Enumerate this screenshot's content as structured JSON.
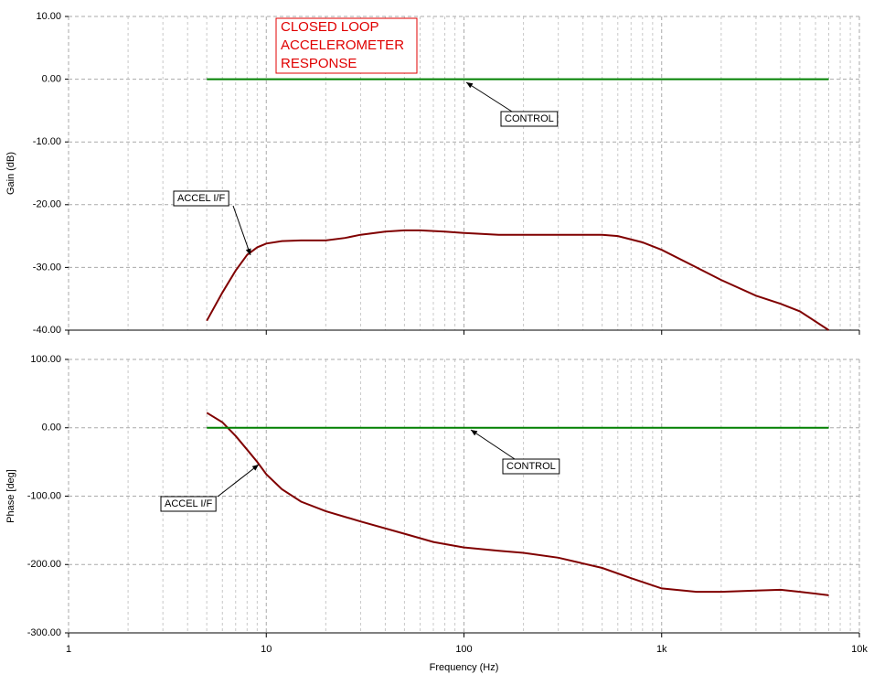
{
  "chart_data": [
    {
      "type": "line",
      "title": [
        "CLOSED LOOP",
        "ACCELEROMETER",
        "RESPONSE"
      ],
      "ylabel": "Gain (dB)",
      "x": [
        5,
        6,
        7,
        8,
        9,
        10,
        12,
        15,
        20,
        25,
        30,
        40,
        50,
        60,
        80,
        100,
        150,
        200,
        300,
        500,
        600,
        800,
        1000,
        1500,
        2000,
        3000,
        4000,
        5000,
        7000
      ],
      "series": [
        {
          "name": "ACCEL I/F",
          "color": "#800000",
          "values": [
            -38.5,
            -34,
            -30.5,
            -28,
            -26.8,
            -26.2,
            -25.8,
            -25.7,
            -25.7,
            -25.3,
            -24.8,
            -24.3,
            -24.1,
            -24.1,
            -24.3,
            -24.5,
            -24.8,
            -24.8,
            -24.8,
            -24.8,
            -25,
            -26,
            -27.2,
            -30,
            -32,
            -34.5,
            -35.8,
            -37,
            -40
          ]
        },
        {
          "name": "CONTROL",
          "color": "#008000",
          "values": [
            0,
            0,
            0,
            0,
            0,
            0,
            0,
            0,
            0,
            0,
            0,
            0,
            0,
            0,
            0,
            0,
            0,
            0,
            0,
            0,
            0,
            0,
            0,
            0,
            0,
            0,
            0,
            0,
            0
          ]
        }
      ],
      "xscale": "log",
      "xlim": [
        1,
        10000
      ],
      "xticks": [
        1,
        10,
        100,
        {
          "value": 1000,
          "label": "1k"
        },
        {
          "value": 10000,
          "label": "10k"
        }
      ],
      "ylim": [
        -40,
        10
      ],
      "yticks": [
        {
          "value": -40,
          "label": "-40.00"
        },
        {
          "value": -30,
          "label": "-30.00"
        },
        {
          "value": -20,
          "label": "-20.00"
        },
        {
          "value": -10,
          "label": "-10.00"
        },
        {
          "value": 0,
          "label": "0.00"
        },
        {
          "value": 10,
          "label": "10.00"
        }
      ],
      "grid": true
    },
    {
      "type": "line",
      "ylabel": "Phase [deg]",
      "xlabel": "Frequency (Hz)",
      "x": [
        5,
        6,
        7,
        8,
        9,
        10,
        12,
        15,
        20,
        30,
        50,
        70,
        100,
        150,
        200,
        300,
        500,
        700,
        1000,
        1500,
        2000,
        3000,
        4000,
        5000,
        7000
      ],
      "series": [
        {
          "name": "ACCEL I/F",
          "color": "#800000",
          "values": [
            22,
            8,
            -12,
            -32,
            -50,
            -68,
            -90,
            -108,
            -122,
            -137,
            -155,
            -167,
            -175,
            -180,
            -183,
            -190,
            -205,
            -220,
            -235,
            -240,
            -240,
            -238,
            -237,
            -240,
            -245
          ]
        },
        {
          "name": "CONTROL",
          "color": "#008000",
          "values": [
            0,
            0,
            0,
            0,
            0,
            0,
            0,
            0,
            0,
            0,
            0,
            0,
            0,
            0,
            0,
            0,
            0,
            0,
            0,
            0,
            0,
            0,
            0,
            0,
            0
          ]
        }
      ],
      "xscale": "log",
      "xlim": [
        1,
        10000
      ],
      "xticks": [
        1,
        10,
        100,
        {
          "value": 1000,
          "label": "1k"
        },
        {
          "value": 10000,
          "label": "10k"
        }
      ],
      "ylim": [
        -300,
        100
      ],
      "yticks": [
        {
          "value": -300,
          "label": "-300.00"
        },
        {
          "value": -200,
          "label": "-200.00"
        },
        {
          "value": -100,
          "label": "-100.00"
        },
        {
          "value": 0,
          "label": "0.00"
        },
        {
          "value": 100,
          "label": "100.00"
        }
      ],
      "grid": true
    }
  ]
}
